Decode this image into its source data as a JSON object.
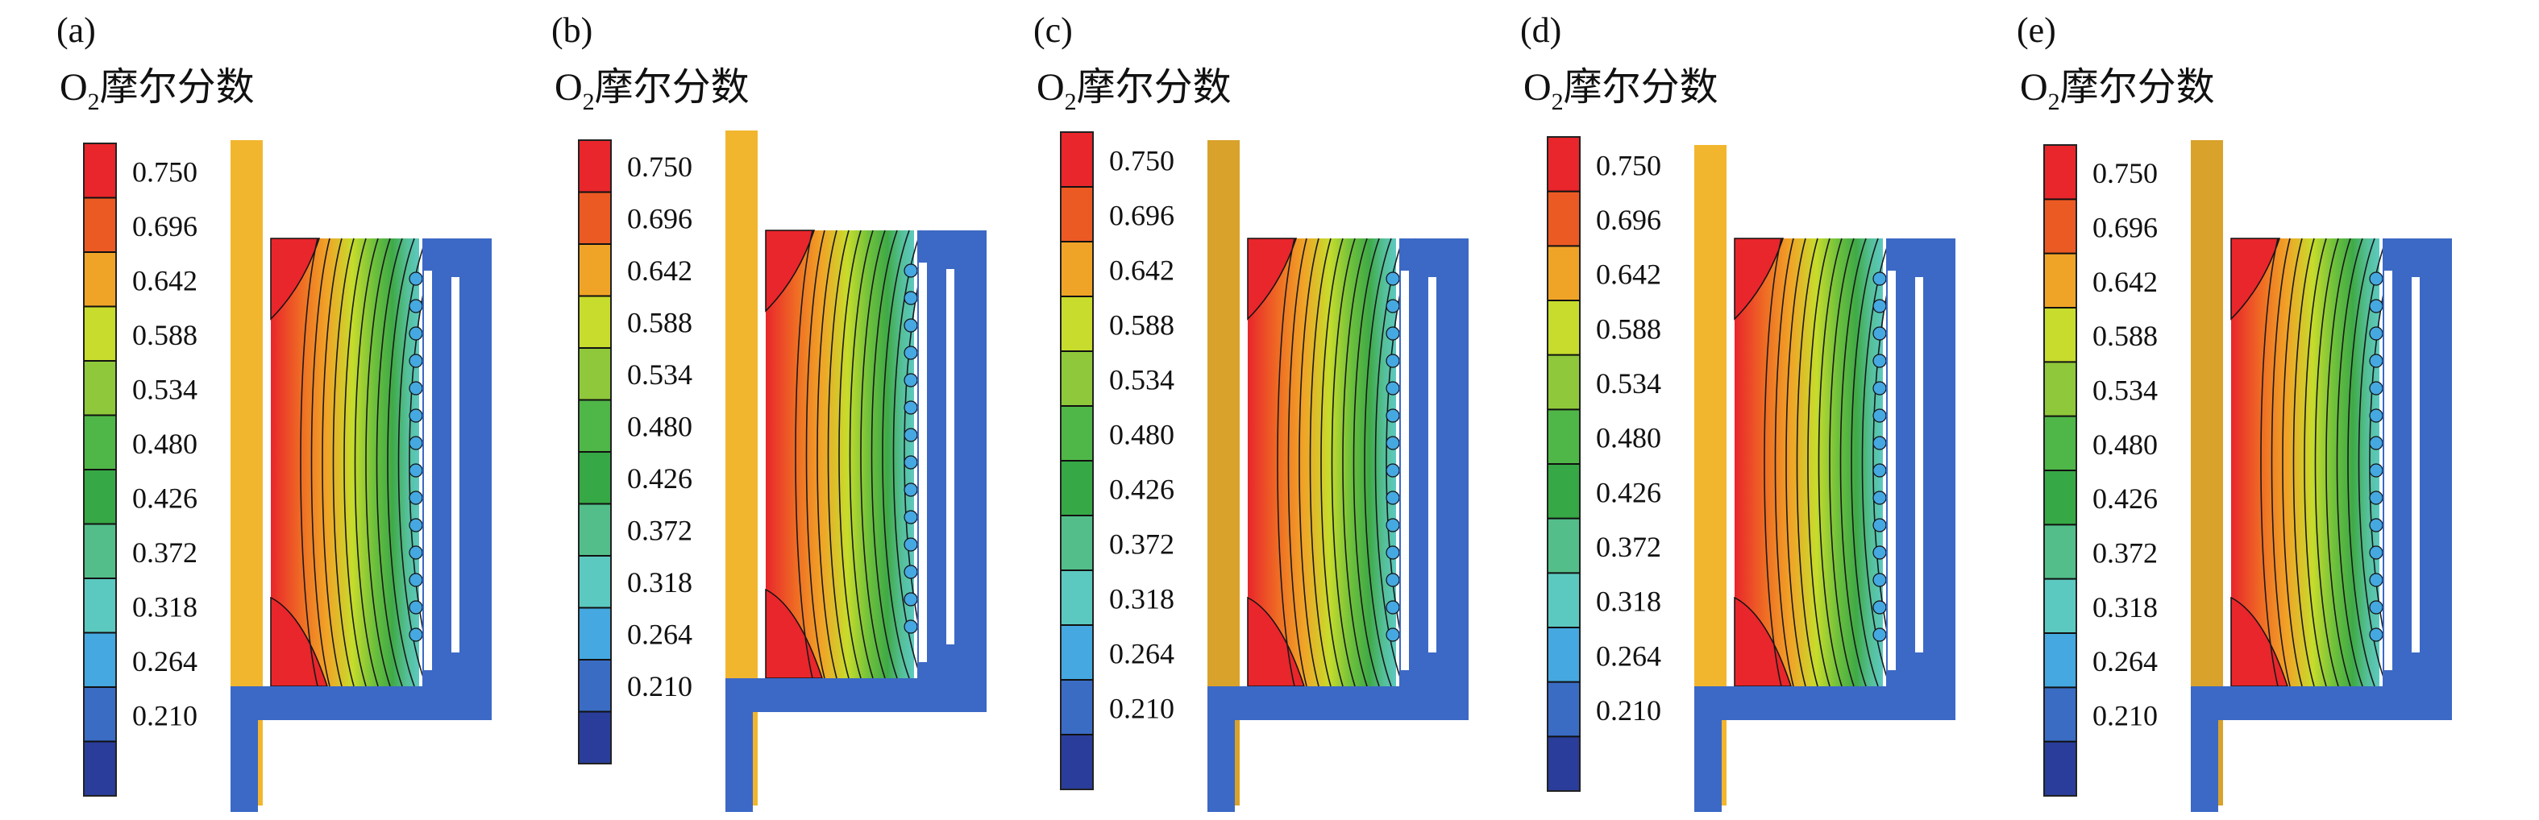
{
  "panels": [
    {
      "label": "(a)",
      "title_main": "O",
      "title_sub": "2",
      "title_rest": "摩尔分数"
    },
    {
      "label": "(b)",
      "title_main": "O",
      "title_sub": "2",
      "title_rest": "摩尔分数"
    },
    {
      "label": "(c)",
      "title_main": "O",
      "title_sub": "2",
      "title_rest": "摩尔分数"
    },
    {
      "label": "(d)",
      "title_main": "O",
      "title_sub": "2",
      "title_rest": "摩尔分数"
    },
    {
      "label": "(e)",
      "title_main": "O",
      "title_sub": "2",
      "title_rest": "摩尔分数"
    }
  ],
  "colorbar": {
    "ticks": [
      "0.750",
      "0.696",
      "0.642",
      "0.588",
      "0.534",
      "0.480",
      "0.426",
      "0.372",
      "0.318",
      "0.264",
      "0.210"
    ],
    "colors": [
      "#e8262b",
      "#ec5a23",
      "#f0a427",
      "#c7dc2c",
      "#8fc83a",
      "#4fb648",
      "#36a845",
      "#53be8a",
      "#5cc9c0",
      "#45a8e0",
      "#3a6cc4",
      "#2a3d9a"
    ]
  },
  "colors": {
    "wall": "#3c69c6",
    "inlet": "#f2b62e",
    "inlet_dark": "#d9a22a",
    "contour_line": "#1a1a1a"
  }
}
